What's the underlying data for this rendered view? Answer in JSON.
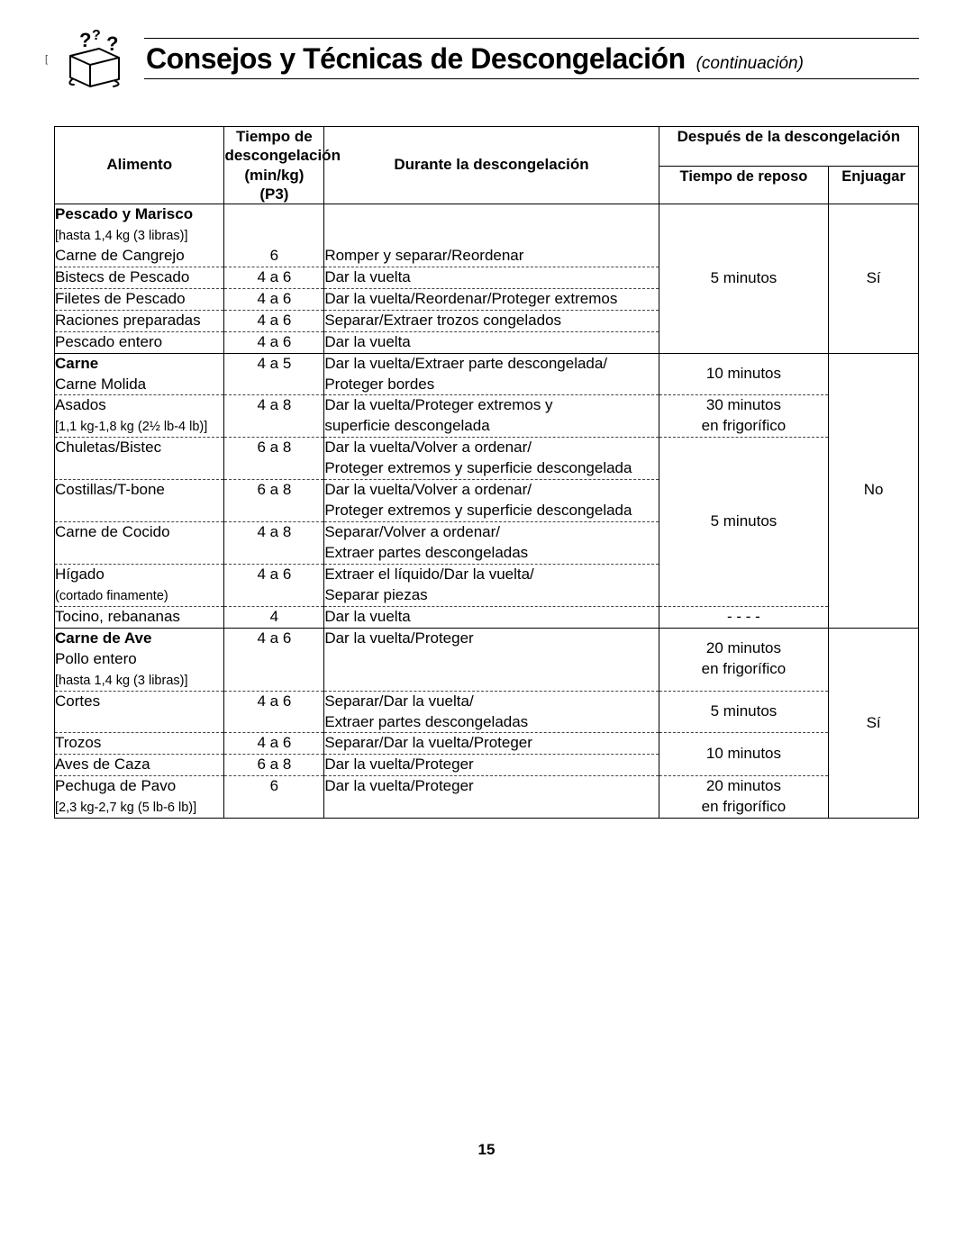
{
  "header": {
    "title": "Consejos y Técnicas de Descongelación",
    "continuation": "(continuación)",
    "icon_name": "ice-cube-question-icon"
  },
  "table": {
    "headers": {
      "food": "Alimento",
      "defrost_time_top": "Tiempo de",
      "defrost_time_mid": "descongelación",
      "defrost_time_unit": "(min/kg)",
      "defrost_time_prog": "(P3)",
      "during": "Durante la descongelación",
      "after_top": "Después de la descongelación",
      "rest_time": "Tiempo de reposo",
      "rinse": "Enjuagar"
    },
    "sections": [
      {
        "title": "Pescado y Marisco",
        "note": "[hasta 1,4 kg (3 libras)]",
        "after_rest_merged": "5 minutos",
        "after_rinse_merged": "Sí",
        "rows": [
          {
            "food": "Carne de Cangrejo",
            "time": "6",
            "during": "Romper y separar/Reordenar"
          },
          {
            "food": "Bistecs de Pescado",
            "time": "4 a 6",
            "during": "Dar la vuelta"
          },
          {
            "food": "Filetes de Pescado",
            "time": "4 a 6",
            "during": "Dar la vuelta/Reordenar/Proteger extremos"
          },
          {
            "food": "Raciones preparadas",
            "time": "4 a 6",
            "during": "Separar/Extraer trozos congelados"
          },
          {
            "food": "Pescado entero",
            "time": "4 a 6",
            "during": "Dar la vuelta"
          }
        ]
      },
      {
        "title": "Carne",
        "after_rinse_merged": "No",
        "groups": [
          {
            "rest": "10 minutos",
            "rows": [
              {
                "food": "Carne Molida",
                "time": "4 a 5",
                "during": "Dar la vuelta/Extraer parte descongelada/\nProteger bordes",
                "food_is_title_row": true
              }
            ]
          },
          {
            "rest": "30 minutos\nen frigorífico",
            "rows": [
              {
                "food": "Asados",
                "food_note": "[1,1 kg-1,8 kg (2½ lb-4 lb)]",
                "time": "4 a 8",
                "during": "Dar la vuelta/Proteger extremos y\nsuperficie descongelada"
              }
            ]
          },
          {
            "rest": "5 minutos",
            "rows": [
              {
                "food": "Chuletas/Bistec",
                "time": "6 a 8",
                "during": "Dar la vuelta/Volver a ordenar/\nProteger extremos y superficie descongelada"
              },
              {
                "food": "Costillas/T-bone",
                "time": "6 a 8",
                "during": "Dar la vuelta/Volver a ordenar/\nProteger extremos y superficie descongelada"
              },
              {
                "food": "Carne de Cocido",
                "time": "4 a 8",
                "during": "Separar/Volver a ordenar/\nExtraer partes descongeladas"
              },
              {
                "food": "Hígado",
                "food_note": "(cortado finamente)",
                "time": "4 a 6",
                "during": "Extraer el líquido/Dar la vuelta/\nSeparar piezas"
              }
            ]
          },
          {
            "rest": "- - - -",
            "rows": [
              {
                "food": "Tocino, rebananas",
                "time": "4",
                "during": "Dar la vuelta"
              }
            ]
          }
        ]
      },
      {
        "title": "Carne de Ave",
        "after_rinse_merged": "Sí",
        "groups": [
          {
            "rest": "20 minutos\nen frigorífico",
            "rows": [
              {
                "food": "Pollo entero",
                "food_note": "[hasta 1,4 kg (3 libras)]",
                "time": "4 a 6",
                "during": "Dar la vuelta/Proteger",
                "food_is_title_row": true
              }
            ]
          },
          {
            "rest": "5 minutos",
            "rows": [
              {
                "food": "Cortes",
                "time": "4 a 6",
                "during": "Separar/Dar la vuelta/\nExtraer partes descongeladas"
              }
            ]
          },
          {
            "rest": "10 minutos",
            "rows": [
              {
                "food": "Trozos",
                "time": "4 a 6",
                "during": "Separar/Dar la vuelta/Proteger"
              },
              {
                "food": "Aves de Caza",
                "time": "6 a 8",
                "during": "Dar la vuelta/Proteger"
              }
            ]
          },
          {
            "rest": "20 minutos\nen frigorífico",
            "rows": [
              {
                "food": "Pechuga de Pavo",
                "food_note": "[2,3 kg-2,7 kg (5 lb-6 lb)]",
                "time": "6",
                "during": "Dar la vuelta/Proteger"
              }
            ]
          }
        ]
      }
    ]
  },
  "page_number": "15"
}
